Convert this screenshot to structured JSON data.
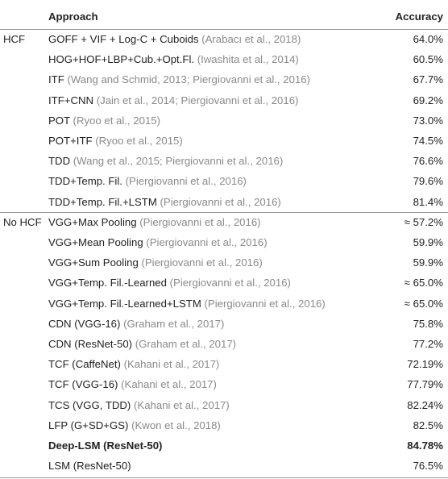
{
  "table": {
    "header": [
      "Approach",
      "Accuracy"
    ],
    "groups": [
      {
        "label": "HCF",
        "rows": [
          {
            "method": "GOFF + VIF + Log-C + Cuboids",
            "citation": "(Arabacı et al., 2018)",
            "accuracy": "64.0%"
          },
          {
            "method": "HOG+HOF+LBP+Cub.+Opt.Fl.",
            "citation": "(Iwashita et al., 2014)",
            "accuracy": "60.5%"
          },
          {
            "method": "ITF",
            "citation": "(Wang and Schmid, 2013; Piergiovanni et al., 2016)",
            "accuracy": "67.7%"
          },
          {
            "method": "ITF+CNN",
            "citation": "(Jain et al., 2014; Piergiovanni et al., 2016)",
            "accuracy": "69.2%"
          },
          {
            "method": "POT",
            "citation": "(Ryoo et al., 2015)",
            "accuracy": "73.0%"
          },
          {
            "method": "POT+ITF",
            "citation": "(Ryoo et al., 2015)",
            "accuracy": "74.5%"
          },
          {
            "method": "TDD",
            "citation": "(Wang et al., 2015; Piergiovanni et al., 2016)",
            "accuracy": "76.6%"
          },
          {
            "method": "TDD+Temp. Fil.",
            "citation": "(Piergiovanni et al., 2016)",
            "accuracy": "79.6%"
          },
          {
            "method": "TDD+Temp. Fil.+LSTM",
            "citation": "(Piergiovanni et al., 2016)",
            "accuracy": "81.4%"
          }
        ]
      },
      {
        "label": "No HCF",
        "rows": [
          {
            "method": "VGG+Max Pooling",
            "citation": "(Piergiovanni et al., 2016)",
            "accuracy": "≈ 57.2%"
          },
          {
            "method": "VGG+Mean Pooling",
            "citation": "(Piergiovanni et al., 2016)",
            "accuracy": "59.9%"
          },
          {
            "method": "VGG+Sum Pooling",
            "citation": "(Piergiovanni et al., 2016)",
            "accuracy": "59.9%"
          },
          {
            "method": "VGG+Temp. Fil.-Learned",
            "citation": "(Piergiovanni et al., 2016)",
            "accuracy": "≈ 65.0%"
          },
          {
            "method": "VGG+Temp. Fil.-Learned+LSTM",
            "citation": "(Piergiovanni et al., 2016)",
            "accuracy": "≈ 65.0%"
          },
          {
            "method": "CDN (VGG-16)",
            "citation": "(Graham et al., 2017)",
            "accuracy": "75.8%"
          },
          {
            "method": "CDN (ResNet-50)",
            "citation": "(Graham et al., 2017)",
            "accuracy": "77.2%"
          },
          {
            "method": "TCF (CaffeNet)",
            "citation": "(Kahani et al., 2017)",
            "accuracy": "72.19%"
          },
          {
            "method": "TCF (VGG-16)",
            "citation": "(Kahani et al., 2017)",
            "accuracy": "77.79%"
          },
          {
            "method": "TCS (VGG, TDD)",
            "citation": "(Kahani et al., 2017)",
            "accuracy": "82.24%"
          },
          {
            "method": "LFP (G+SD+GS)",
            "citation": "(Kwon et al., 2018)",
            "accuracy": "82.5%"
          },
          {
            "method": "Deep-LSM (ResNet-50)",
            "accuracy": "84.78%",
            "bold": true
          },
          {
            "method": "LSM (ResNet-50)",
            "accuracy": "76.5%"
          }
        ]
      }
    ]
  }
}
